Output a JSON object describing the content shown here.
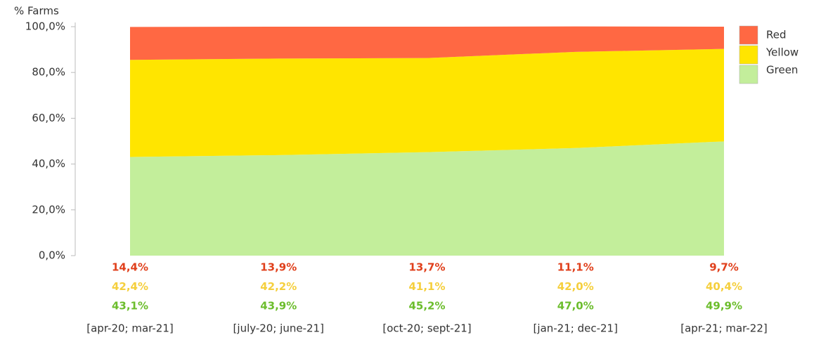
{
  "chart_data": {
    "type": "stacked_area",
    "y_label": "% Farms",
    "categories": [
      "[apr-20; mar-21]",
      "[july-20; june-21]",
      "[oct-20; sept-21]",
      "[jan-21; dec-21]",
      "[apr-21; mar-22]"
    ],
    "series": [
      {
        "name": "Red",
        "color": "#ff6843",
        "label_color": "#e0401c",
        "values": [
          14.4,
          13.9,
          13.7,
          11.1,
          9.7
        ],
        "value_labels": [
          "14,4%",
          "13,9%",
          "13,7%",
          "11,1%",
          "9,7%"
        ]
      },
      {
        "name": "Yellow",
        "color": "#ffe500",
        "label_color": "#f5cf3d",
        "values": [
          42.4,
          42.2,
          41.1,
          42.0,
          40.4
        ],
        "value_labels": [
          "42,4%",
          "42,2%",
          "41,1%",
          "42,0%",
          "40,4%"
        ]
      },
      {
        "name": "Green",
        "color": "#c3ee9b",
        "label_color": "#6cbd2c",
        "values": [
          43.1,
          43.9,
          45.2,
          47.0,
          49.9
        ],
        "value_labels": [
          "43,1%",
          "43,9%",
          "45,2%",
          "47,0%",
          "49,9%"
        ]
      }
    ],
    "ylim": [
      0,
      100
    ],
    "yticks": [
      {
        "value": 0,
        "label": "0,0%"
      },
      {
        "value": 20,
        "label": "20,0%"
      },
      {
        "value": 40,
        "label": "40,0%"
      },
      {
        "value": 60,
        "label": "60,0%"
      },
      {
        "value": 80,
        "label": "80,0%"
      },
      {
        "value": 100,
        "label": "100,0%"
      }
    ],
    "grid": false,
    "legend": "top-right"
  }
}
